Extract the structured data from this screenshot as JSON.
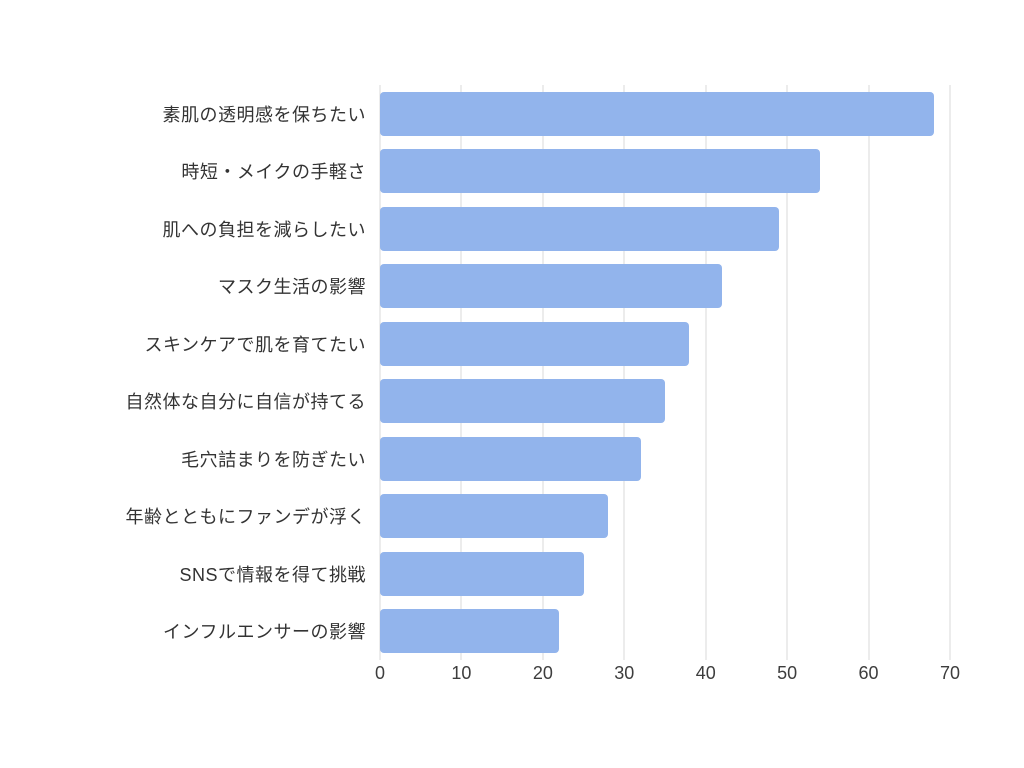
{
  "chart_data": {
    "type": "bar",
    "orientation": "horizontal",
    "title": "",
    "xlabel": "",
    "ylabel": "",
    "categories": [
      "素肌の透明感を保ちたい",
      "時短・メイクの手軽さ",
      "肌への負担を減らしたい",
      "マスク生活の影響",
      "スキンケアで肌を育てたい",
      "自然体な自分に自信が持てる",
      "毛穴詰まりを防ぎたい",
      "年齢とともにファンデが浮く",
      "SNSで情報を得て挑戦",
      "インフルエンサーの影響"
    ],
    "values": [
      68,
      54,
      49,
      42,
      38,
      35,
      32,
      28,
      25,
      22
    ],
    "xlim": [
      0,
      70
    ],
    "xticks": [
      0,
      10,
      20,
      30,
      40,
      50,
      60,
      70
    ],
    "grid": "vertical",
    "legend": "none",
    "colors": {
      "bar": "#92b4ec",
      "gridline": "#d9d9d9",
      "label_text": "#333333",
      "tick_text": "#3d3d3d",
      "background": "#ffffff"
    }
  }
}
